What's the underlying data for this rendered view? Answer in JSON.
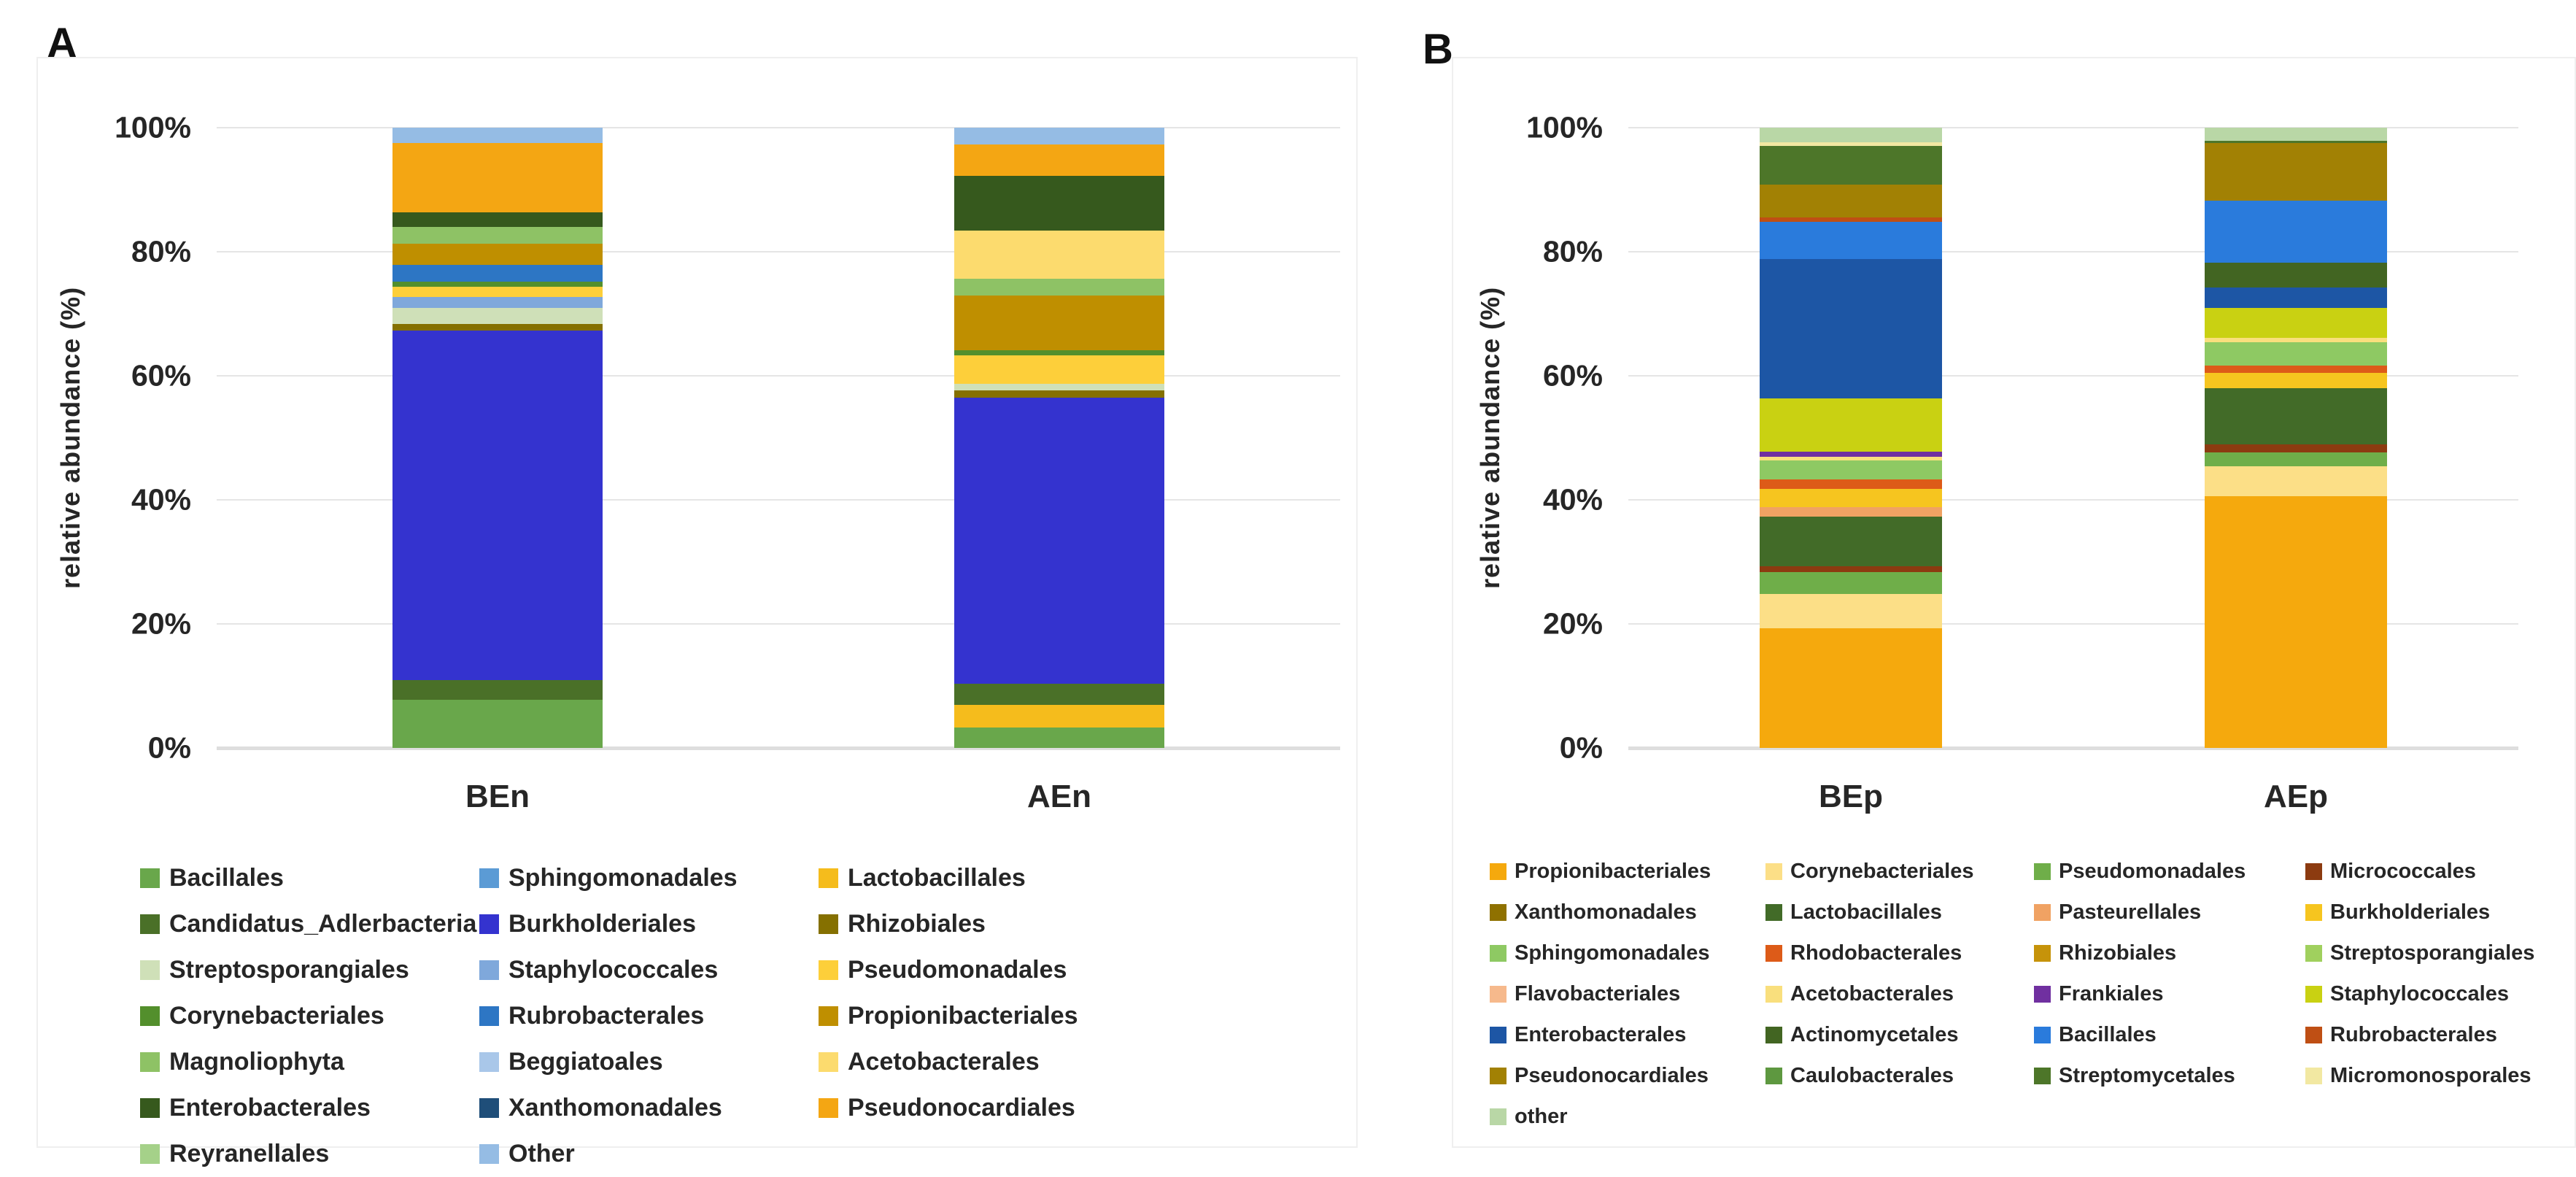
{
  "figure": {
    "panel_a_letter": "A",
    "panel_b_letter": "B"
  },
  "chart_data": [
    {
      "id": "A",
      "type": "bar",
      "stacked": true,
      "title": "",
      "xlabel": "",
      "ylabel": "relative abundance (%)",
      "ylim": [
        0,
        100
      ],
      "yticks": [
        "100%",
        "80%",
        "60%",
        "40%",
        "20%",
        "0%"
      ],
      "grid": true,
      "legend_position": "bottom",
      "categories": [
        "BEn",
        "AEn"
      ],
      "legend": [
        {
          "label": "Bacillales",
          "color": "#69a74b"
        },
        {
          "label": "Sphingomonadales",
          "color": "#5b9bd5"
        },
        {
          "label": "Lactobacillales",
          "color": "#f5bc1c"
        },
        {
          "label": "Candidatus_Adlerbacteria",
          "color": "#4a7028"
        },
        {
          "label": "Burkholderiales",
          "color": "#3433cf"
        },
        {
          "label": "Rhizobiales",
          "color": "#857000"
        },
        {
          "label": "Streptosporangiales",
          "color": "#cfe0b8"
        },
        {
          "label": "Staphylococcales",
          "color": "#7fa8db"
        },
        {
          "label": "Pseudomonadales",
          "color": "#fdcf3a"
        },
        {
          "label": "Corynebacteriales",
          "color": "#538f2c"
        },
        {
          "label": "Rubrobacterales",
          "color": "#2d76c4"
        },
        {
          "label": "Propionibacteriales",
          "color": "#bf8f00"
        },
        {
          "label": "Magnoliophyta",
          "color": "#8ec265"
        },
        {
          "label": "Beggiatoales",
          "color": "#a9c7e9"
        },
        {
          "label": "Acetobacterales",
          "color": "#fcdb6e"
        },
        {
          "label": "Enterobacterales",
          "color": "#36591d"
        },
        {
          "label": "Xanthomonadales",
          "color": "#1f4e79"
        },
        {
          "label": "Pseudonocardiales",
          "color": "#f4a613"
        },
        {
          "label": "Reyranellales",
          "color": "#a5d189"
        },
        {
          "label": "Other",
          "color": "#95bce4"
        }
      ],
      "series_note": "segments listed bottom-to-top, values are percent",
      "bars": [
        {
          "category": "BEn",
          "segments": [
            {
              "order": "Bacillales",
              "value": 7.8,
              "color": "#69a74b"
            },
            {
              "order": "Candidatus_Adlerbacteria",
              "value": 3.2,
              "color": "#4a7028"
            },
            {
              "order": "Burkholderiales",
              "value": 56.3,
              "color": "#3433cf"
            },
            {
              "order": "Rhizobiales",
              "value": 1.0,
              "color": "#857000"
            },
            {
              "order": "Streptosporangiales",
              "value": 2.7,
              "color": "#cfe0b8"
            },
            {
              "order": "Staphylococcales",
              "value": 1.7,
              "color": "#7fa8db"
            },
            {
              "order": "Pseudomonadales",
              "value": 1.7,
              "color": "#fdcf3a"
            },
            {
              "order": "Corynebacteriales",
              "value": 0.8,
              "color": "#538f2c"
            },
            {
              "order": "Rubrobacterales",
              "value": 2.7,
              "color": "#2d76c4"
            },
            {
              "order": "Propionibacteriales",
              "value": 3.4,
              "color": "#bf8f00"
            },
            {
              "order": "Magnoliophyta",
              "value": 2.7,
              "color": "#8ec265"
            },
            {
              "order": "Enterobacterales",
              "value": 2.4,
              "color": "#36591d"
            },
            {
              "order": "Pseudonocardiales",
              "value": 11.2,
              "color": "#f4a613"
            },
            {
              "order": "Other",
              "value": 2.4,
              "color": "#95bce4"
            }
          ]
        },
        {
          "category": "AEn",
          "segments": [
            {
              "order": "Bacillales",
              "value": 3.3,
              "color": "#69a74b"
            },
            {
              "order": "Lactobacillales",
              "value": 3.7,
              "color": "#f5bc1c"
            },
            {
              "order": "Candidatus_Adlerbacteria",
              "value": 3.4,
              "color": "#4a7028"
            },
            {
              "order": "Burkholderiales",
              "value": 46.1,
              "color": "#3433cf"
            },
            {
              "order": "Rhizobiales",
              "value": 1.2,
              "color": "#857000"
            },
            {
              "order": "Streptosporangiales",
              "value": 1.0,
              "color": "#cfe0b8"
            },
            {
              "order": "Pseudomonadales",
              "value": 4.6,
              "color": "#fdcf3a"
            },
            {
              "order": "Corynebacteriales",
              "value": 0.8,
              "color": "#538f2c"
            },
            {
              "order": "Propionibacteriales",
              "value": 8.8,
              "color": "#bf8f00"
            },
            {
              "order": "Magnoliophyta",
              "value": 2.7,
              "color": "#8ec265"
            },
            {
              "order": "Acetobacterales",
              "value": 7.8,
              "color": "#fcdb6e"
            },
            {
              "order": "Enterobacterales",
              "value": 8.8,
              "color": "#36591d"
            },
            {
              "order": "Pseudonocardiales",
              "value": 5.1,
              "color": "#f4a613"
            },
            {
              "order": "Other",
              "value": 2.7,
              "color": "#95bce4"
            }
          ]
        }
      ]
    },
    {
      "id": "B",
      "type": "bar",
      "stacked": true,
      "title": "",
      "xlabel": "",
      "ylabel": "relative abundance (%)",
      "ylim": [
        0,
        100
      ],
      "yticks": [
        "100%",
        "80%",
        "60%",
        "40%",
        "20%",
        "0%"
      ],
      "grid": true,
      "legend_position": "bottom",
      "categories": [
        "BEp",
        "AEp"
      ],
      "legend": [
        {
          "label": "Propionibacteriales",
          "color": "#f5a90d"
        },
        {
          "label": "Corynebacteriales",
          "color": "#fcdf87"
        },
        {
          "label": "Pseudomonadales",
          "color": "#6fae49"
        },
        {
          "label": "Micrococcales",
          "color": "#8c3b10"
        },
        {
          "label": "Xanthomonadales",
          "color": "#8f7100"
        },
        {
          "label": "Lactobacillales",
          "color": "#426b28"
        },
        {
          "label": "Pasteurellales",
          "color": "#f0a263"
        },
        {
          "label": "Burkholderiales",
          "color": "#f6c51f"
        },
        {
          "label": "Sphingomonadales",
          "color": "#8ec963"
        },
        {
          "label": "Rhodobacterales",
          "color": "#dd5b18"
        },
        {
          "label": "Rhizobiales",
          "color": "#c6930a"
        },
        {
          "label": "Streptosporangiales",
          "color": "#a0d05e"
        },
        {
          "label": "Flavobacteriales",
          "color": "#f6b98c"
        },
        {
          "label": "Acetobacterales",
          "color": "#f9df7d"
        },
        {
          "label": "Frankiales",
          "color": "#7030a0"
        },
        {
          "label": "Staphylococcales",
          "color": "#c9d112"
        },
        {
          "label": "Enterobacterales",
          "color": "#1d56a5"
        },
        {
          "label": "Actinomycetales",
          "color": "#426522"
        },
        {
          "label": "Bacillales",
          "color": "#2a7bdc"
        },
        {
          "label": "Rubrobacterales",
          "color": "#bf4f14"
        },
        {
          "label": "Pseudonocardiales",
          "color": "#a28104"
        },
        {
          "label": "Caulobacterales",
          "color": "#5e9840"
        },
        {
          "label": "Streptomycetales",
          "color": "#4d7629"
        },
        {
          "label": "Micromonosporales",
          "color": "#f2e8a2"
        },
        {
          "label": "other",
          "color": "#b9d7a6"
        }
      ],
      "series_note": "segments listed bottom-to-top, values are percent",
      "bars": [
        {
          "category": "BEp",
          "segments": [
            {
              "order": "Propionibacteriales",
              "value": 19.3,
              "color": "#f5a90d"
            },
            {
              "order": "Corynebacteriales",
              "value": 5.5,
              "color": "#fcdf87"
            },
            {
              "order": "Pseudomonadales",
              "value": 3.5,
              "color": "#6fae49"
            },
            {
              "order": "Micrococcales",
              "value": 1.0,
              "color": "#8c3b10"
            },
            {
              "order": "Lactobacillales",
              "value": 8.0,
              "color": "#426b28"
            },
            {
              "order": "Pasteurellales",
              "value": 1.5,
              "color": "#f0a263"
            },
            {
              "order": "Burkholderiales",
              "value": 3.0,
              "color": "#f6c51f"
            },
            {
              "order": "Rhodobacterales",
              "value": 1.5,
              "color": "#dd5b18"
            },
            {
              "order": "Sphingomonadales",
              "value": 3.0,
              "color": "#8ec963"
            },
            {
              "order": "Acetobacterales",
              "value": 0.7,
              "color": "#f9df7d"
            },
            {
              "order": "Frankiales",
              "value": 0.8,
              "color": "#7030a0"
            },
            {
              "order": "Staphylococcales",
              "value": 8.5,
              "color": "#c9d112"
            },
            {
              "order": "Enterobacterales",
              "value": 22.5,
              "color": "#1d56a5"
            },
            {
              "order": "Bacillales",
              "value": 6.0,
              "color": "#2a7bdc"
            },
            {
              "order": "Rubrobacterales",
              "value": 0.7,
              "color": "#bf4f14"
            },
            {
              "order": "Pseudonocardiales",
              "value": 5.3,
              "color": "#a28104"
            },
            {
              "order": "Streptomycetales",
              "value": 6.3,
              "color": "#4d7629"
            },
            {
              "order": "Micromonosporales",
              "value": 0.6,
              "color": "#f2e8a2"
            },
            {
              "order": "other",
              "value": 2.3,
              "color": "#b9d7a6"
            }
          ]
        },
        {
          "category": "AEp",
          "segments": [
            {
              "order": "Propionibacteriales",
              "value": 40.6,
              "color": "#f5a90d"
            },
            {
              "order": "Corynebacteriales",
              "value": 4.8,
              "color": "#fcdf87"
            },
            {
              "order": "Pseudomonadales",
              "value": 2.2,
              "color": "#6fae49"
            },
            {
              "order": "Micrococcales",
              "value": 1.3,
              "color": "#8c3b10"
            },
            {
              "order": "Lactobacillales",
              "value": 9.1,
              "color": "#426b28"
            },
            {
              "order": "Burkholderiales",
              "value": 2.5,
              "color": "#f6c51f"
            },
            {
              "order": "Rhodobacterales",
              "value": 1.2,
              "color": "#dd5b18"
            },
            {
              "order": "Sphingomonadales",
              "value": 3.7,
              "color": "#8ec963"
            },
            {
              "order": "Acetobacterales",
              "value": 0.7,
              "color": "#f9df7d"
            },
            {
              "order": "Staphylococcales",
              "value": 4.8,
              "color": "#c9d112"
            },
            {
              "order": "Enterobacterales",
              "value": 3.4,
              "color": "#1d56a5"
            },
            {
              "order": "Actinomycetales",
              "value": 3.9,
              "color": "#426522"
            },
            {
              "order": "Bacillales",
              "value": 10.0,
              "color": "#2a7bdc"
            },
            {
              "order": "Pseudonocardiales",
              "value": 9.3,
              "color": "#a28104"
            },
            {
              "order": "Streptomycetales",
              "value": 0.4,
              "color": "#4d7629"
            },
            {
              "order": "other",
              "value": 2.1,
              "color": "#b9d7a6"
            }
          ]
        }
      ]
    }
  ]
}
